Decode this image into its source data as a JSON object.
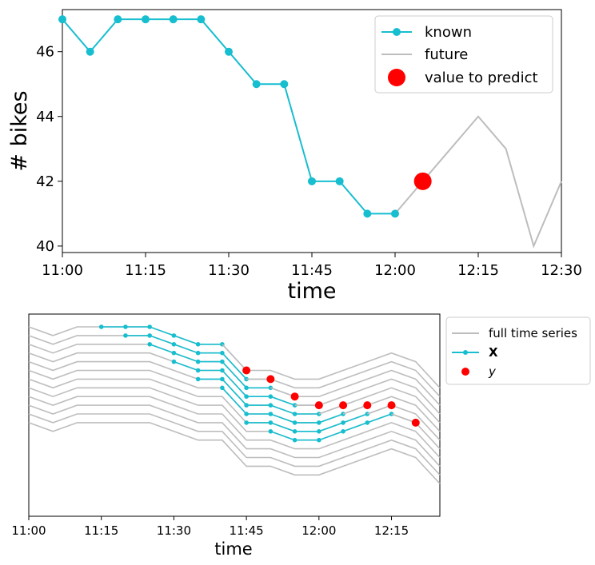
{
  "chart_data": [
    {
      "type": "line",
      "xlabel": "time",
      "ylabel": "# bikes",
      "xticks": [
        "11:00",
        "11:15",
        "11:30",
        "11:45",
        "12:00",
        "12:15",
        "12:30"
      ],
      "yticks": [
        "40",
        "42",
        "44",
        "46"
      ],
      "xlim": [
        "11:00",
        "12:30"
      ],
      "ylim": [
        39.8,
        47.3
      ],
      "legend_position": "top-right",
      "grid": false,
      "series": [
        {
          "name": "known",
          "color": "#17BECF",
          "markers": true,
          "x": [
            "11:00",
            "11:05",
            "11:10",
            "11:15",
            "11:20",
            "11:25",
            "11:30",
            "11:35",
            "11:40",
            "11:45",
            "11:50",
            "11:55",
            "12:00"
          ],
          "y": [
            47,
            46,
            47,
            47,
            47,
            47,
            46,
            45,
            45,
            42,
            42,
            41,
            41
          ]
        },
        {
          "name": "future",
          "color": "#BDBDBD",
          "markers": false,
          "x": [
            "12:00",
            "12:05",
            "12:10",
            "12:15",
            "12:20",
            "12:25",
            "12:30"
          ],
          "y": [
            41,
            42,
            43,
            44,
            43,
            40,
            42
          ]
        },
        {
          "name": "value to predict",
          "color": "#FF0000",
          "type": "scatter",
          "x": [
            "12:05"
          ],
          "y": [
            42
          ]
        }
      ]
    },
    {
      "type": "line",
      "xlabel": "time",
      "xticks": [
        "11:00",
        "11:15",
        "11:30",
        "11:45",
        "12:00",
        "12:15"
      ],
      "xlim": [
        "11:00",
        "12:25"
      ],
      "y_axis_hidden": true,
      "legend_position": "outside-right",
      "grid": false,
      "full_time_series": [
        47,
        46,
        47,
        47,
        47,
        47,
        46,
        45,
        45,
        42,
        42,
        41,
        41,
        42,
        43,
        44,
        43,
        40
      ],
      "window_length": 6,
      "window_count": 8,
      "first_window_start": "11:15",
      "legend": [
        {
          "name": "full time series",
          "color": "#BDBDBD"
        },
        {
          "name": "X",
          "color": "#17BECF"
        },
        {
          "name": "y",
          "color": "#FF0000"
        }
      ]
    }
  ]
}
